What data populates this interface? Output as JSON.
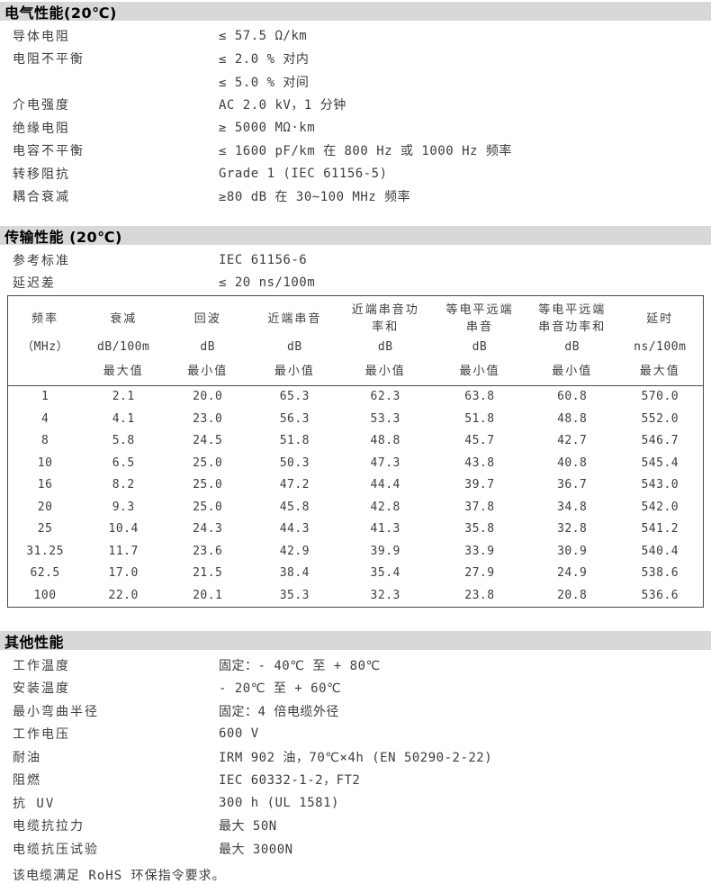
{
  "sections": {
    "electrical": {
      "title": "电气性能(20℃)",
      "rows": [
        {
          "label": "导体电阻",
          "value": "≤ 57.5 Ω/km"
        },
        {
          "label": "电阻不平衡",
          "value": "≤ 2.0 % 对内"
        },
        {
          "label": "",
          "value": "≤ 5.0 % 对间"
        },
        {
          "label": "介电强度",
          "value": "AC 2.0 kV，1 分钟"
        },
        {
          "label": "绝缘电阻",
          "value": "≥ 5000 MΩ·km"
        },
        {
          "label": "电容不平衡",
          "value": "≤ 1600 pF/km 在 800 Hz 或 1000 Hz 频率"
        },
        {
          "label": "转移阻抗",
          "value": "Grade 1 (IEC 61156-5)"
        },
        {
          "label": "耦合衰减",
          "value": "≥80 dB 在 30~100 MHz 频率"
        }
      ]
    },
    "transmission": {
      "title": "传输性能 (20℃)",
      "rows": [
        {
          "label": "参考标准",
          "value": "IEC 61156-6"
        },
        {
          "label": "延迟差",
          "value": "≤ 20 ns/100m"
        }
      ]
    },
    "other": {
      "title": "其他性能",
      "rows": [
        {
          "label": "工作温度",
          "value": "固定：- 40℃ 至 + 80℃"
        },
        {
          "label": "安装温度",
          "value": "- 20℃ 至 + 60℃"
        },
        {
          "label": "最小弯曲半径",
          "value": "固定：4 倍电缆外径"
        },
        {
          "label": "工作电压",
          "value": "600 V"
        },
        {
          "label": "耐油",
          "value": "IRM 902 油，70℃×4h (EN 50290-2-22)"
        },
        {
          "label": "阻燃",
          "value": "IEC 60332-1-2，FT2"
        },
        {
          "label": "抗 UV",
          "value": "300 h (UL 1581)"
        },
        {
          "label": "电缆抗拉力",
          "value": "最大 50N"
        },
        {
          "label": "电缆抗压试验",
          "value": "最大 3000N"
        }
      ]
    }
  },
  "footer_note": "该电缆满足 RoHS 环保指令要求。",
  "colors": {
    "section_bar": "#d8d8d8",
    "text": "#3d3d3d",
    "table_border": "#4a4a4a"
  },
  "chart_data": {
    "type": "table",
    "title": "传输性能 (20℃)",
    "columns": [
      {
        "name": "频率",
        "unit": "（MHz）",
        "limit": ""
      },
      {
        "name": "衰减",
        "unit": "dB/100m",
        "limit": "最大值"
      },
      {
        "name": "回波",
        "unit": "dB",
        "limit": "最小值"
      },
      {
        "name": "近端串音",
        "unit": "dB",
        "limit": "最小值"
      },
      {
        "name": "近端串音功\n率和",
        "unit": "dB",
        "limit": "最小值"
      },
      {
        "name": "等电平远端\n串音",
        "unit": "dB",
        "limit": "最小值"
      },
      {
        "name": "等电平远端\n串音功率和",
        "unit": "dB",
        "limit": "最小值"
      },
      {
        "name": "延时",
        "unit": "ns/100m",
        "limit": "最大值"
      }
    ],
    "rows": [
      [
        "1",
        "2.1",
        "20.0",
        "65.3",
        "62.3",
        "63.8",
        "60.8",
        "570.0"
      ],
      [
        "4",
        "4.1",
        "23.0",
        "56.3",
        "53.3",
        "51.8",
        "48.8",
        "552.0"
      ],
      [
        "8",
        "5.8",
        "24.5",
        "51.8",
        "48.8",
        "45.7",
        "42.7",
        "546.7"
      ],
      [
        "10",
        "6.5",
        "25.0",
        "50.3",
        "47.3",
        "43.8",
        "40.8",
        "545.4"
      ],
      [
        "16",
        "8.2",
        "25.0",
        "47.2",
        "44.4",
        "39.7",
        "36.7",
        "543.0"
      ],
      [
        "20",
        "9.3",
        "25.0",
        "45.8",
        "42.8",
        "37.8",
        "34.8",
        "542.0"
      ],
      [
        "25",
        "10.4",
        "24.3",
        "44.3",
        "41.3",
        "35.8",
        "32.8",
        "541.2"
      ],
      [
        "31.25",
        "11.7",
        "23.6",
        "42.9",
        "39.9",
        "33.9",
        "30.9",
        "540.4"
      ],
      [
        "62.5",
        "17.0",
        "21.5",
        "38.4",
        "35.4",
        "27.9",
        "24.9",
        "538.6"
      ],
      [
        "100",
        "22.0",
        "20.1",
        "35.3",
        "32.3",
        "23.8",
        "20.8",
        "536.6"
      ]
    ]
  }
}
